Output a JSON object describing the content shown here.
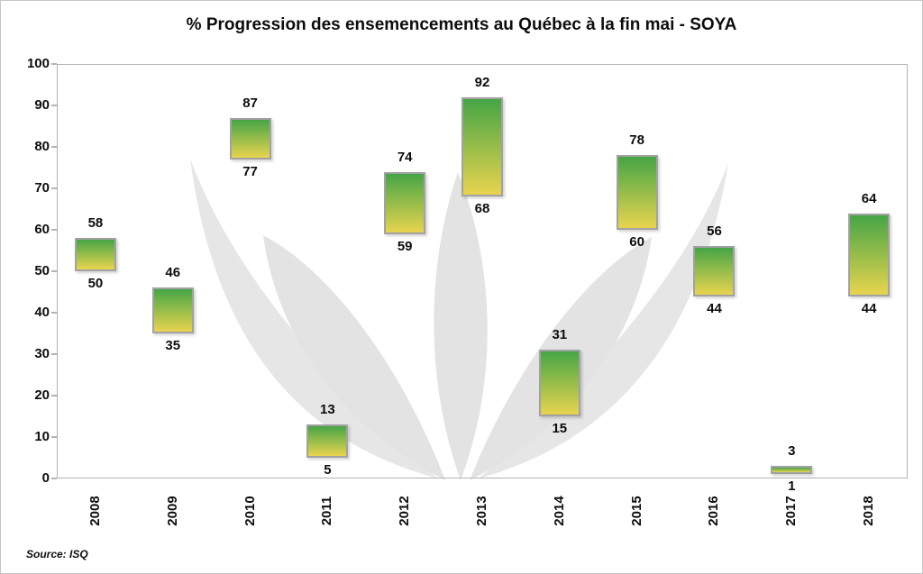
{
  "title": "% Progression des ensemencements au Québec à la fin mai - SOYA",
  "source": "Source: ISQ",
  "chart_data": {
    "type": "bar",
    "subtype": "floating-range-columns",
    "title": "% Progression des ensemencements au Québec à la fin mai - SOYA",
    "xlabel": "",
    "ylabel": "",
    "ylim": [
      0,
      100
    ],
    "yticks": [
      0,
      10,
      20,
      30,
      40,
      50,
      60,
      70,
      80,
      90,
      100
    ],
    "grid": false,
    "legend": "none",
    "categories": [
      "2008",
      "2009",
      "2010",
      "2011",
      "2012",
      "2013",
      "2014",
      "2015",
      "2016",
      "2017",
      "2018"
    ],
    "series": [
      {
        "name": "low",
        "values": [
          50,
          35,
          77,
          5,
          59,
          68,
          15,
          60,
          44,
          1,
          44
        ]
      },
      {
        "name": "high",
        "values": [
          58,
          46,
          87,
          13,
          74,
          92,
          31,
          78,
          56,
          3,
          64
        ]
      }
    ],
    "colors": {
      "bar_gradient_top": "#46a546",
      "bar_gradient_bottom": "#e8d44e",
      "bar_border": "#a2a2a2",
      "axis_line": "#b3b3b3",
      "text": "#0d0d0d",
      "watermark": "#e6e6e6"
    }
  }
}
